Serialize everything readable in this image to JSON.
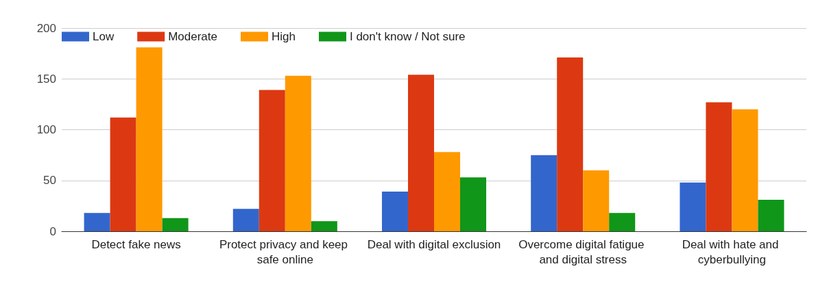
{
  "chart_data": {
    "type": "bar",
    "categories": [
      "Detect fake news",
      "Protect privacy and keep safe online",
      "Deal with digital exclusion",
      "Overcome digital fatigue and digital stress",
      "Deal with hate and cyberbullying"
    ],
    "series": [
      {
        "name": "Low",
        "color": "#3366cc",
        "values": [
          18,
          22,
          39,
          75,
          48
        ]
      },
      {
        "name": "Moderate",
        "color": "#dc3912",
        "values": [
          112,
          139,
          154,
          171,
          127
        ]
      },
      {
        "name": "High",
        "color": "#ff9900",
        "values": [
          181,
          153,
          78,
          60,
          120
        ]
      },
      {
        "name": "I don't know / Not sure",
        "color": "#109618",
        "values": [
          13,
          10,
          53,
          18,
          31
        ]
      }
    ],
    "ylim": [
      0,
      200
    ],
    "yticks": [
      0,
      50,
      100,
      150,
      200
    ],
    "grid": "y",
    "legend": "top left"
  }
}
